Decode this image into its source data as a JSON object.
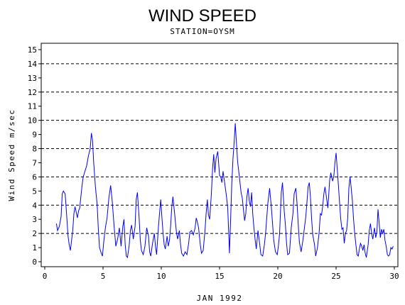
{
  "chart_data": {
    "type": "line",
    "title": "WIND SPEED",
    "subtitle": "STATION=OYSM",
    "xlabel": "JAN 1992",
    "ylabel": "Wind Speed m/sec",
    "xlim": [
      0,
      30
    ],
    "ylim": [
      0,
      15
    ],
    "x_ticks": [
      0,
      5,
      10,
      15,
      20,
      25,
      30
    ],
    "y_ticks": [
      0,
      1,
      2,
      3,
      4,
      5,
      6,
      7,
      8,
      9,
      10,
      11,
      12,
      13,
      14,
      15
    ],
    "dashed_reference_lines": [
      2,
      4,
      6,
      8,
      10,
      12,
      14
    ],
    "grid": false,
    "series": [
      {
        "color": "#0000ff",
        "points": [
          [
            1.0,
            2.7
          ],
          [
            1.1,
            2.2
          ],
          [
            1.25,
            2.5
          ],
          [
            1.4,
            3.2
          ],
          [
            1.5,
            4.8
          ],
          [
            1.6,
            5.0
          ],
          [
            1.75,
            4.8
          ],
          [
            1.9,
            3.0
          ],
          [
            2.0,
            1.8
          ],
          [
            2.1,
            1.2
          ],
          [
            2.2,
            0.8
          ],
          [
            2.3,
            1.5
          ],
          [
            2.4,
            2.2
          ],
          [
            2.5,
            3.4
          ],
          [
            2.6,
            3.9
          ],
          [
            2.7,
            3.5
          ],
          [
            2.8,
            3.1
          ],
          [
            2.9,
            3.6
          ],
          [
            3.0,
            3.8
          ],
          [
            3.1,
            4.6
          ],
          [
            3.2,
            5.4
          ],
          [
            3.3,
            6.0
          ],
          [
            3.45,
            6.4
          ],
          [
            3.6,
            6.8
          ],
          [
            3.75,
            7.5
          ],
          [
            3.9,
            8.0
          ],
          [
            4.0,
            9.1
          ],
          [
            4.1,
            8.6
          ],
          [
            4.2,
            7.0
          ],
          [
            4.35,
            5.3
          ],
          [
            4.5,
            4.0
          ],
          [
            4.6,
            2.3
          ],
          [
            4.7,
            1.0
          ],
          [
            4.85,
            0.6
          ],
          [
            4.95,
            0.4
          ],
          [
            5.05,
            1.3
          ],
          [
            5.2,
            2.4
          ],
          [
            5.35,
            3.1
          ],
          [
            5.5,
            4.5
          ],
          [
            5.65,
            5.4
          ],
          [
            5.8,
            4.2
          ],
          [
            5.95,
            2.5
          ],
          [
            6.1,
            1.1
          ],
          [
            6.25,
            1.6
          ],
          [
            6.4,
            2.4
          ],
          [
            6.55,
            1.1
          ],
          [
            6.7,
            2.5
          ],
          [
            6.8,
            3.0
          ],
          [
            6.9,
            1.2
          ],
          [
            7.0,
            0.4
          ],
          [
            7.1,
            0.3
          ],
          [
            7.25,
            1.2
          ],
          [
            7.35,
            2.2
          ],
          [
            7.45,
            2.6
          ],
          [
            7.6,
            1.6
          ],
          [
            7.75,
            2.5
          ],
          [
            7.85,
            4.4
          ],
          [
            7.95,
            4.9
          ],
          [
            8.1,
            3.1
          ],
          [
            8.2,
            1.5
          ],
          [
            8.3,
            0.8
          ],
          [
            8.45,
            0.5
          ],
          [
            8.6,
            1.1
          ],
          [
            8.75,
            2.4
          ],
          [
            8.9,
            1.8
          ],
          [
            9.0,
            0.7
          ],
          [
            9.1,
            0.4
          ],
          [
            9.25,
            1.3
          ],
          [
            9.4,
            2.0
          ],
          [
            9.5,
            1.1
          ],
          [
            9.6,
            0.5
          ],
          [
            9.75,
            2.4
          ],
          [
            9.85,
            3.4
          ],
          [
            9.95,
            4.4
          ],
          [
            10.05,
            3.2
          ],
          [
            10.15,
            2.0
          ],
          [
            10.25,
            1.2
          ],
          [
            10.35,
            0.9
          ],
          [
            10.5,
            1.8
          ],
          [
            10.6,
            1.1
          ],
          [
            10.7,
            1.5
          ],
          [
            10.8,
            2.5
          ],
          [
            10.9,
            3.9
          ],
          [
            11.0,
            4.6
          ],
          [
            11.1,
            3.8
          ],
          [
            11.2,
            2.9
          ],
          [
            11.3,
            2.1
          ],
          [
            11.4,
            1.6
          ],
          [
            11.55,
            2.2
          ],
          [
            11.65,
            1.2
          ],
          [
            11.75,
            0.6
          ],
          [
            11.9,
            0.4
          ],
          [
            12.05,
            0.7
          ],
          [
            12.2,
            0.5
          ],
          [
            12.35,
            1.3
          ],
          [
            12.45,
            2.1
          ],
          [
            12.6,
            2.2
          ],
          [
            12.75,
            1.9
          ],
          [
            12.9,
            2.4
          ],
          [
            13.0,
            3.1
          ],
          [
            13.1,
            2.8
          ],
          [
            13.2,
            2.4
          ],
          [
            13.35,
            1.2
          ],
          [
            13.45,
            0.6
          ],
          [
            13.6,
            0.8
          ],
          [
            13.75,
            2.2
          ],
          [
            13.85,
            3.4
          ],
          [
            13.95,
            4.4
          ],
          [
            14.05,
            3.3
          ],
          [
            14.15,
            3.0
          ],
          [
            14.3,
            4.8
          ],
          [
            14.4,
            6.6
          ],
          [
            14.5,
            7.6
          ],
          [
            14.6,
            6.3
          ],
          [
            14.7,
            7.3
          ],
          [
            14.85,
            7.8
          ],
          [
            15.0,
            6.1
          ],
          [
            15.1,
            6.0
          ],
          [
            15.2,
            5.6
          ],
          [
            15.3,
            6.4
          ],
          [
            15.45,
            5.5
          ],
          [
            15.6,
            4.6
          ],
          [
            15.7,
            3.8
          ],
          [
            15.8,
            1.8
          ],
          [
            15.85,
            0.6
          ],
          [
            15.95,
            3.0
          ],
          [
            16.05,
            5.5
          ],
          [
            16.15,
            7.3
          ],
          [
            16.25,
            8.4
          ],
          [
            16.35,
            9.8
          ],
          [
            16.45,
            8.4
          ],
          [
            16.55,
            7.1
          ],
          [
            16.7,
            6.0
          ],
          [
            16.85,
            4.9
          ],
          [
            16.95,
            4.5
          ],
          [
            17.05,
            3.7
          ],
          [
            17.15,
            2.9
          ],
          [
            17.25,
            3.4
          ],
          [
            17.35,
            4.6
          ],
          [
            17.45,
            5.2
          ],
          [
            17.55,
            4.3
          ],
          [
            17.65,
            3.9
          ],
          [
            17.75,
            4.9
          ],
          [
            17.85,
            3.4
          ],
          [
            17.95,
            2.4
          ],
          [
            18.05,
            1.6
          ],
          [
            18.15,
            0.9
          ],
          [
            18.3,
            2.2
          ],
          [
            18.45,
            1.2
          ],
          [
            18.55,
            0.5
          ],
          [
            18.7,
            0.4
          ],
          [
            18.85,
            1.2
          ],
          [
            18.95,
            2.0
          ],
          [
            19.05,
            3.1
          ],
          [
            19.15,
            4.2
          ],
          [
            19.3,
            5.2
          ],
          [
            19.45,
            3.8
          ],
          [
            19.55,
            2.7
          ],
          [
            19.65,
            1.5
          ],
          [
            19.8,
            0.7
          ],
          [
            19.95,
            0.5
          ],
          [
            20.05,
            1.1
          ],
          [
            20.15,
            2.0
          ],
          [
            20.3,
            4.9
          ],
          [
            20.4,
            5.6
          ],
          [
            20.55,
            3.6
          ],
          [
            20.65,
            2.6
          ],
          [
            20.75,
            1.3
          ],
          [
            20.85,
            0.5
          ],
          [
            21.0,
            0.6
          ],
          [
            21.15,
            2.4
          ],
          [
            21.3,
            3.4
          ],
          [
            21.4,
            4.8
          ],
          [
            21.55,
            5.2
          ],
          [
            21.65,
            4.1
          ],
          [
            21.75,
            2.7
          ],
          [
            21.85,
            1.4
          ],
          [
            22.0,
            0.7
          ],
          [
            22.15,
            1.5
          ],
          [
            22.3,
            2.5
          ],
          [
            22.4,
            3.2
          ],
          [
            22.5,
            4.2
          ],
          [
            22.6,
            5.3
          ],
          [
            22.7,
            5.6
          ],
          [
            22.8,
            4.6
          ],
          [
            22.9,
            3.0
          ],
          [
            23.0,
            1.9
          ],
          [
            23.15,
            1.2
          ],
          [
            23.25,
            0.4
          ],
          [
            23.4,
            1.0
          ],
          [
            23.55,
            2.1
          ],
          [
            23.65,
            3.4
          ],
          [
            23.75,
            3.3
          ],
          [
            23.85,
            3.9
          ],
          [
            23.95,
            4.8
          ],
          [
            24.05,
            5.3
          ],
          [
            24.2,
            4.4
          ],
          [
            24.3,
            3.8
          ],
          [
            24.45,
            5.8
          ],
          [
            24.55,
            6.3
          ],
          [
            24.7,
            5.7
          ],
          [
            24.8,
            6.0
          ],
          [
            24.9,
            7.0
          ],
          [
            25.0,
            7.7
          ],
          [
            25.1,
            6.6
          ],
          [
            25.2,
            5.4
          ],
          [
            25.3,
            4.2
          ],
          [
            25.4,
            3.0
          ],
          [
            25.5,
            2.3
          ],
          [
            25.6,
            2.4
          ],
          [
            25.7,
            1.3
          ],
          [
            25.8,
            2.0
          ],
          [
            25.9,
            2.2
          ],
          [
            26.0,
            3.1
          ],
          [
            26.1,
            5.2
          ],
          [
            26.2,
            6.0
          ],
          [
            26.3,
            5.2
          ],
          [
            26.4,
            4.3
          ],
          [
            26.5,
            3.0
          ],
          [
            26.6,
            2.0
          ],
          [
            26.7,
            1.2
          ],
          [
            26.8,
            0.5
          ],
          [
            26.9,
            0.4
          ],
          [
            27.0,
            0.9
          ],
          [
            27.1,
            1.3
          ],
          [
            27.2,
            1.1
          ],
          [
            27.3,
            0.8
          ],
          [
            27.4,
            1.2
          ],
          [
            27.5,
            0.6
          ],
          [
            27.6,
            0.3
          ],
          [
            27.75,
            1.2
          ],
          [
            27.85,
            2.2
          ],
          [
            27.95,
            2.7
          ],
          [
            28.05,
            2.0
          ],
          [
            28.15,
            1.6
          ],
          [
            28.3,
            2.4
          ],
          [
            28.4,
            1.7
          ],
          [
            28.5,
            2.1
          ],
          [
            28.6,
            3.7
          ],
          [
            28.7,
            2.7
          ],
          [
            28.8,
            1.7
          ],
          [
            28.9,
            2.3
          ],
          [
            29.0,
            2.0
          ],
          [
            29.1,
            2.3
          ],
          [
            29.2,
            1.5
          ],
          [
            29.3,
            1.1
          ],
          [
            29.4,
            0.5
          ],
          [
            29.5,
            0.4
          ],
          [
            29.6,
            0.5
          ],
          [
            29.7,
            1.0
          ],
          [
            29.8,
            0.9
          ],
          [
            29.9,
            1.1
          ]
        ]
      }
    ]
  }
}
